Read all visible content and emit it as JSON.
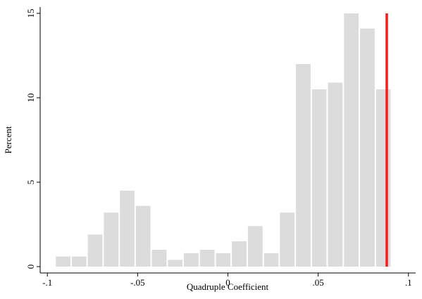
{
  "chart_data": {
    "type": "histogram",
    "x_label": "Quadruple Coefficient",
    "y_label": "Percent",
    "bins": [
      -0.0957,
      -0.0868,
      -0.078,
      -0.0691,
      -0.0602,
      -0.0514,
      -0.0425,
      -0.0336,
      -0.0248,
      -0.0159,
      -0.007,
      0.0018,
      0.0107,
      0.0196,
      0.0284,
      0.0373,
      0.0462,
      0.055,
      0.0639,
      0.0728,
      0.0817,
      0.0905
    ],
    "values": [
      0.6,
      0.6,
      1.9,
      3.2,
      4.5,
      3.6,
      1.0,
      0.4,
      0.8,
      1.0,
      0.8,
      1.5,
      2.4,
      0.8,
      3.2,
      12.0,
      10.5,
      10.9,
      15.0,
      14.1,
      10.5
    ],
    "color": "#dcdcdc",
    "reference_line": {
      "value": 0.088,
      "color": "#ff1a1a"
    },
    "xlim": [
      -0.104,
      0.104
    ],
    "xticks": [
      {
        "value": -0.1,
        "label": "-.1"
      },
      {
        "value": -0.05,
        "label": "-.05"
      },
      0,
      {
        "value": 0.05,
        "label": ".05"
      },
      {
        "value": 0.1,
        "label": ".1"
      }
    ],
    "ylim": [
      -0.375,
      15.375
    ],
    "yticks": [
      0,
      5,
      10,
      15
    ]
  }
}
